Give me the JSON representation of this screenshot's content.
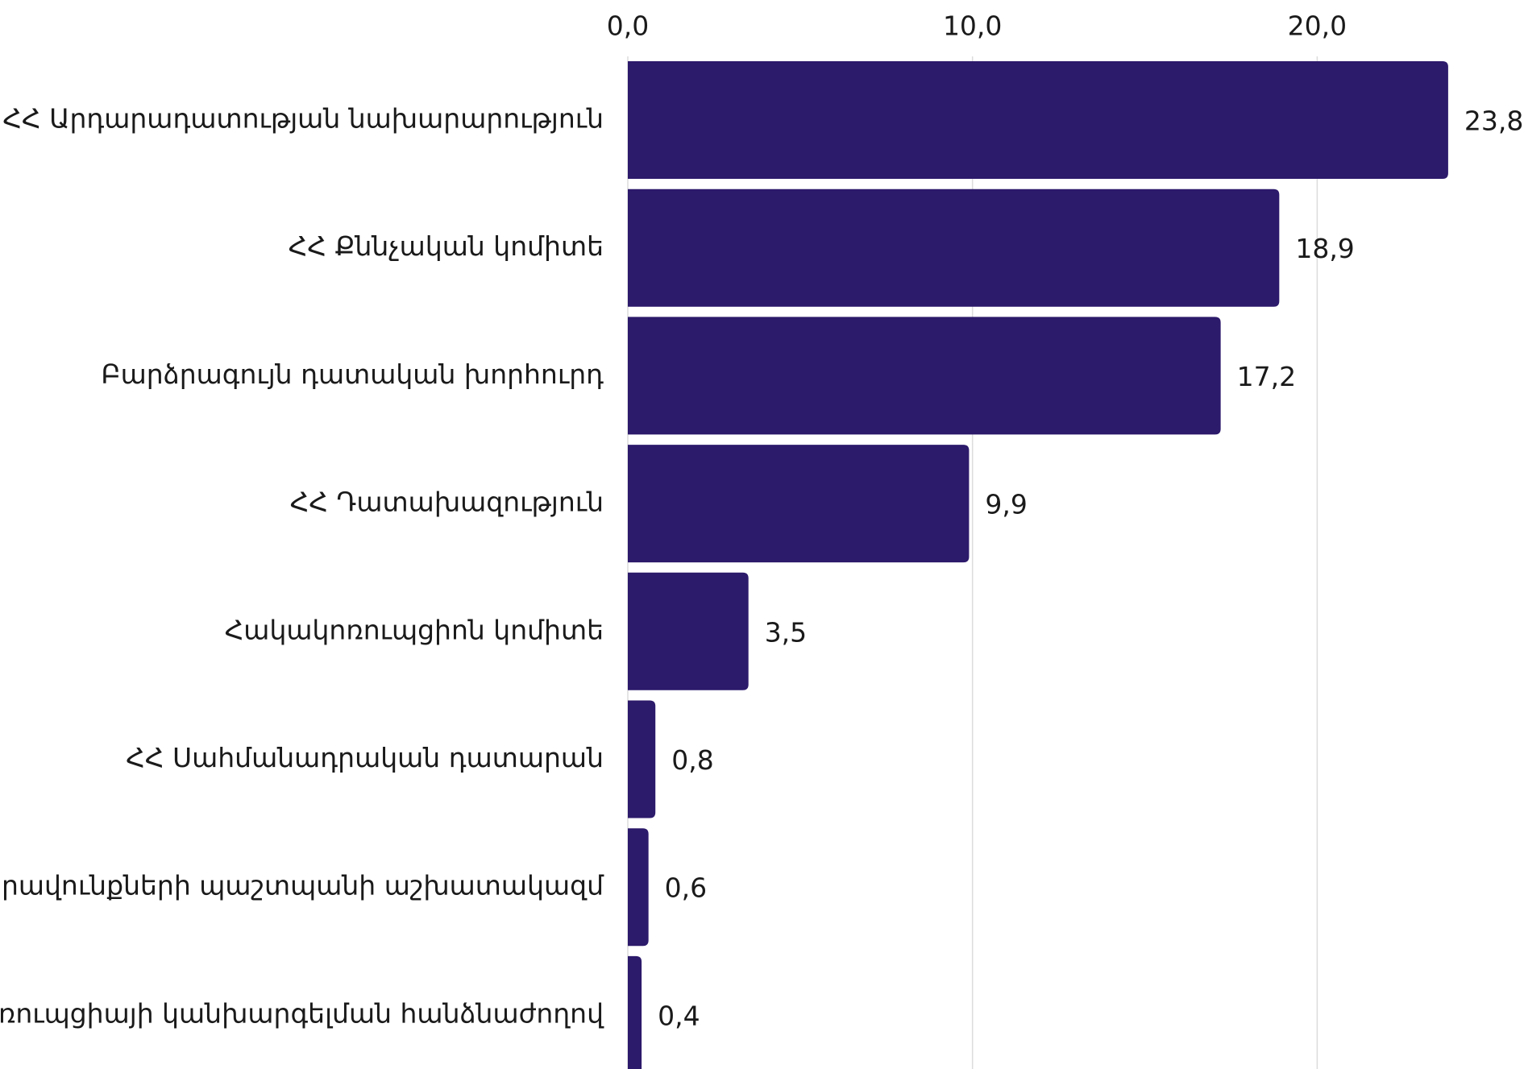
{
  "chart_data": {
    "type": "bar",
    "orientation": "horizontal",
    "categories": [
      "ՀՀ Արդարադատության նախարարություն",
      "ՀՀ Քննչական կոմիտե",
      "Բարձրագույն դատական խորհուրդ",
      "ՀՀ Դատախազություն",
      "Հակակոռուպցիոն կոմիտե",
      "ՀՀ Սահմանադրական դատարան",
      "րավունքների պաշտպանի աշխատակազմ",
      "ռուպցիայի կանխարգելման հանձնաժողով"
    ],
    "values": [
      23.8,
      18.9,
      17.2,
      9.9,
      3.5,
      0.8,
      0.6,
      0.4
    ],
    "value_labels": [
      "23,8",
      "18,9",
      "17,2",
      "9,9",
      "3,5",
      "0,8",
      "0,6",
      "0,4"
    ],
    "color": "#2c1a6b",
    "xlim": [
      0,
      26
    ],
    "xticks": [
      {
        "value": 0,
        "label": "0,0"
      },
      {
        "value": 10,
        "label": "10,0"
      },
      {
        "value": 20,
        "label": "20,0"
      }
    ],
    "grid": true
  }
}
